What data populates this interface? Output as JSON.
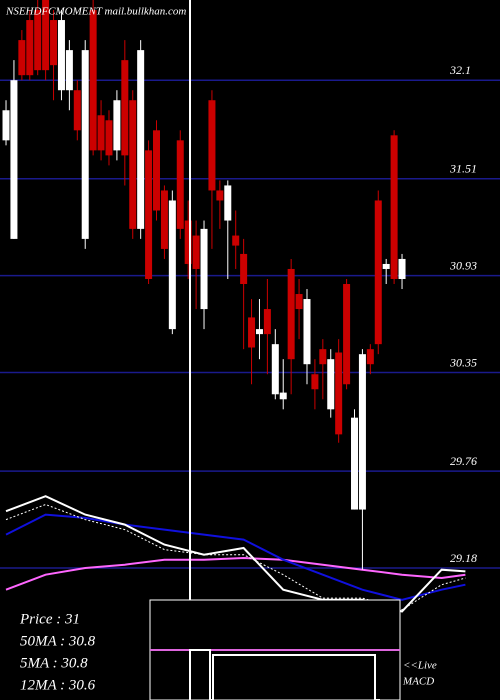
{
  "chart_data": {
    "type": "candlestick",
    "watermark": "NSEHDFCMOMENT mail.bullkhan.com",
    "xlim": [
      -0.76,
      62.37
    ],
    "ylim": [
      28.39,
      32.58
    ],
    "yticks": [
      32.1,
      31.51,
      30.93,
      30.35,
      29.76,
      29.18
    ],
    "grid": true,
    "up_color": "#ffffff",
    "down_color": "#cc0000",
    "open": [
      31.74,
      31.15,
      32.34,
      32.46,
      32.52,
      32.58,
      32.46,
      32.04,
      32.04,
      32.04,
      31.15,
      32.52,
      31.89,
      31.86,
      31.68,
      32.22,
      31.98,
      31.21,
      31.68,
      31.8,
      31.44,
      30.61,
      31.74,
      31.26,
      31.17,
      30.73,
      31.98,
      31.44,
      31.26,
      31.17,
      31.06,
      30.68,
      30.58,
      30.73,
      30.22,
      30.19,
      30.97,
      30.82,
      30.4,
      30.34,
      30.49,
      30.13,
      30.47,
      30.88,
      29.53,
      29.53,
      30.49,
      31.38,
      30.97,
      31.77,
      30.91
    ],
    "high": [
      31.98,
      32.22,
      32.4,
      32.52,
      32.58,
      32.58,
      32.52,
      32.52,
      32.34,
      32.1,
      32.34,
      32.58,
      31.98,
      31.92,
      32.04,
      32.34,
      32.04,
      32.34,
      31.74,
      31.86,
      31.47,
      31.44,
      31.8,
      31.38,
      31.26,
      31.26,
      32.04,
      31.5,
      31.5,
      31.32,
      31.15,
      30.79,
      30.79,
      30.91,
      30.61,
      30.43,
      31.03,
      30.91,
      30.85,
      30.43,
      30.55,
      30.49,
      30.55,
      30.91,
      30.13,
      30.49,
      30.52,
      31.44,
      31.03,
      31.8,
      31.06
    ],
    "low": [
      31.71,
      31.15,
      32.1,
      32.1,
      32.13,
      32.1,
      31.98,
      31.98,
      31.92,
      31.74,
      31.09,
      31.65,
      31.62,
      31.59,
      31.62,
      31.47,
      31.15,
      31.15,
      30.88,
      31.26,
      31.03,
      30.58,
      31.15,
      30.91,
      30.73,
      30.61,
      31.09,
      31.21,
      30.91,
      30.97,
      30.49,
      30.28,
      30.43,
      30.34,
      30.19,
      30.13,
      30.22,
      30.55,
      30.28,
      30.13,
      30.19,
      30.08,
      29.93,
      30.25,
      29.53,
      29.17,
      30.34,
      30.46,
      30.88,
      30.88,
      30.85
    ],
    "close": [
      31.92,
      32.1,
      32.13,
      32.13,
      32.16,
      32.16,
      32.19,
      32.46,
      32.28,
      31.8,
      32.28,
      31.68,
      31.68,
      31.65,
      31.98,
      31.65,
      31.21,
      32.28,
      30.91,
      31.32,
      31.09,
      31.38,
      31.21,
      31.0,
      30.97,
      31.21,
      31.44,
      31.38,
      31.47,
      31.11,
      30.88,
      30.5,
      30.61,
      30.58,
      30.52,
      30.23,
      30.43,
      30.73,
      30.79,
      30.25,
      30.4,
      30.43,
      29.98,
      30.28,
      30.08,
      30.46,
      30.4,
      30.52,
      31.0,
      30.91,
      31.03
    ],
    "lines": [
      {
        "color": "#ff66ff",
        "x": [
          0,
          5,
          10,
          15,
          20,
          25,
          30,
          35,
          40,
          45,
          50,
          55,
          58
        ],
        "values": [
          29.05,
          29.14,
          29.18,
          29.2,
          29.23,
          29.23,
          29.24,
          29.23,
          29.2,
          29.17,
          29.14,
          29.12,
          29.14
        ]
      },
      {
        "color": "#1010dd",
        "x": [
          0,
          5,
          10,
          15,
          20,
          25,
          30,
          35,
          40,
          45,
          50,
          55,
          58
        ],
        "values": [
          29.38,
          29.5,
          29.48,
          29.44,
          29.41,
          29.38,
          29.35,
          29.23,
          29.14,
          29.05,
          28.99,
          29.05,
          29.08
        ]
      },
      {
        "color": "#ffffff",
        "dash": true,
        "x": [
          0,
          5,
          10,
          15,
          20,
          25,
          30,
          35,
          40,
          45,
          50,
          55,
          58
        ],
        "values": [
          29.47,
          29.56,
          29.47,
          29.41,
          29.29,
          29.26,
          29.26,
          29.14,
          29.0,
          29.0,
          28.93,
          29.08,
          29.12
        ]
      },
      {
        "color": "#ffffff",
        "x": [
          0,
          5,
          10,
          15,
          20,
          25,
          30,
          35,
          40,
          45,
          50,
          55,
          58
        ],
        "values": [
          29.52,
          29.61,
          29.5,
          29.44,
          29.32,
          29.26,
          29.3,
          29.05,
          28.99,
          28.99,
          28.92,
          29.17,
          29.16
        ]
      }
    ],
    "info": [
      "Price   : 31",
      "50MA : 30.8",
      "5MA : 30.8",
      "12MA : 30.6"
    ],
    "macd_label": [
      "<<Live",
      "MACD"
    ]
  }
}
